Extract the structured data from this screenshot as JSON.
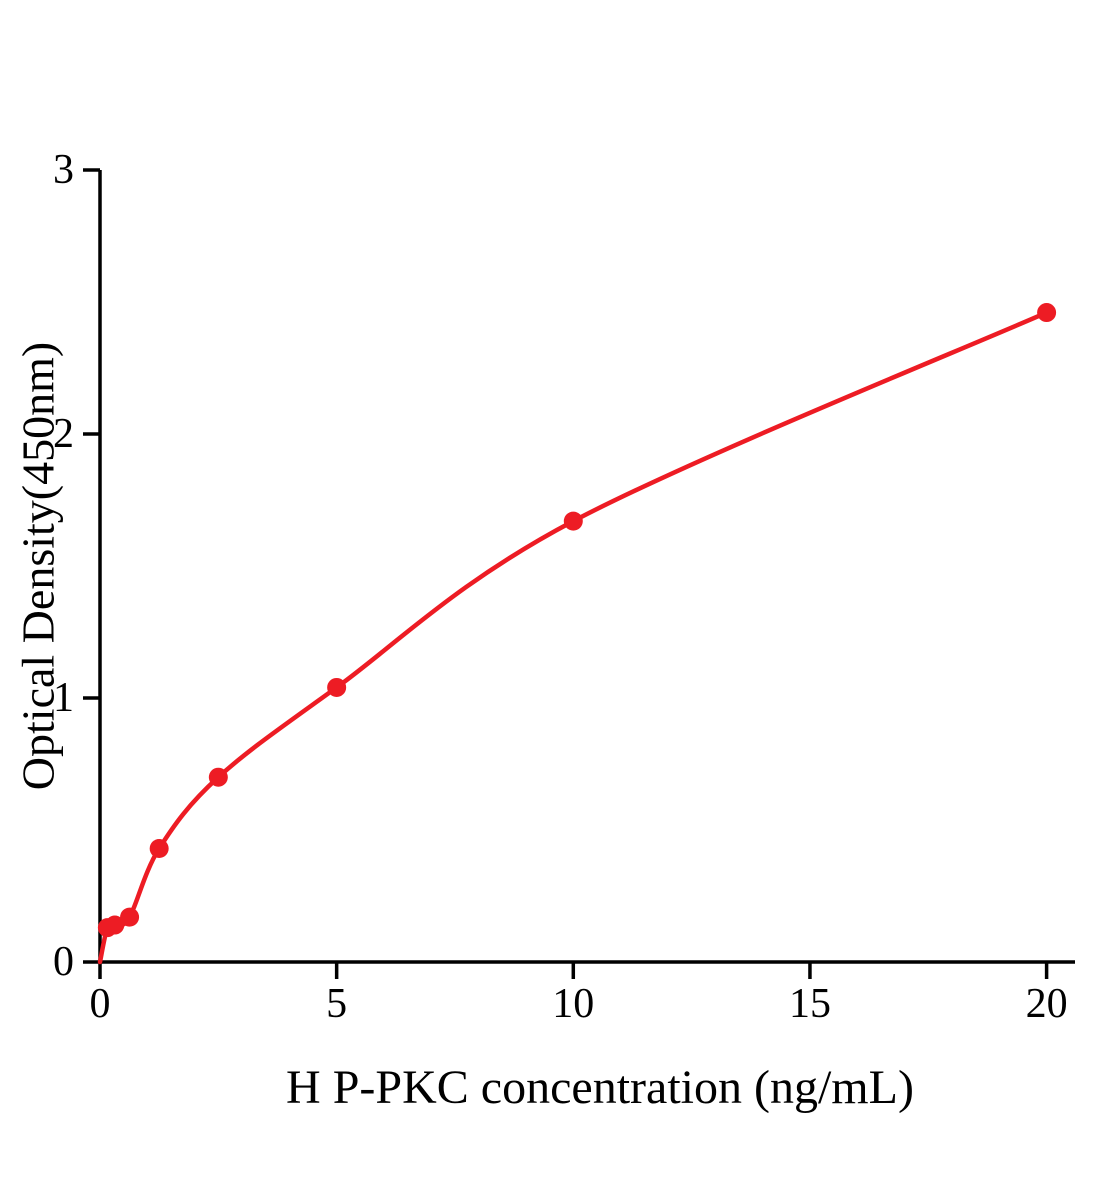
{
  "chart_data": {
    "type": "scatter",
    "title": "",
    "xlabel": "H P-PKC concentration (ng/mL)",
    "ylabel": "Optical Density(450nm)",
    "x": [
      0.156,
      0.313,
      0.625,
      1.25,
      2.5,
      5,
      10,
      20
    ],
    "y": [
      0.13,
      0.14,
      0.17,
      0.43,
      0.7,
      1.04,
      1.67,
      2.46
    ],
    "fit_curve": "smooth curve through origin and all data points",
    "xlim": [
      0,
      20.6
    ],
    "ylim": [
      0,
      3
    ],
    "xticks": [
      0,
      5,
      10,
      15,
      20
    ],
    "yticks": [
      0,
      1,
      2,
      3
    ],
    "grid": false,
    "legend_position": "none",
    "colors": {
      "point_color": "#ed1c24",
      "line_color": "#ed1c24",
      "axis_color": "#000000"
    }
  }
}
